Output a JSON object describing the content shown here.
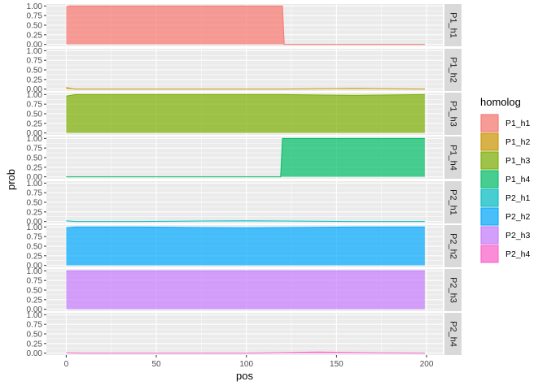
{
  "chart_data": {
    "type": "area",
    "xlabel": "pos",
    "ylabel": "prob",
    "xlim": [
      -11,
      209
    ],
    "ylim": [
      -0.05,
      1.05
    ],
    "x_ticks": [
      0,
      50,
      100,
      150,
      200
    ],
    "y_ticks": [
      0.0,
      0.25,
      0.5,
      0.75,
      1.0
    ],
    "y_tick_labels": [
      "0.00",
      "0.25",
      "0.50",
      "0.75",
      "1.00"
    ],
    "legend": {
      "title": "homolog",
      "position": "right"
    },
    "grid": true,
    "facets": [
      {
        "label": "P1_h1",
        "color": "#F8766D",
        "x": [
          0,
          2,
          120,
          121,
          199
        ],
        "y": [
          0.98,
          1.0,
          1.0,
          0.0,
          0.0
        ]
      },
      {
        "label": "P1_h2",
        "color": "#CD9600",
        "x": [
          0,
          5,
          40,
          120,
          160,
          199
        ],
        "y": [
          0.04,
          0.0,
          0.0,
          0.0,
          0.02,
          0.0
        ]
      },
      {
        "label": "P1_h3",
        "color": "#7CAE00",
        "x": [
          0,
          5,
          60,
          120,
          160,
          199
        ],
        "y": [
          0.96,
          1.0,
          1.0,
          1.0,
          0.98,
          1.0
        ]
      },
      {
        "label": "P1_h4",
        "color": "#00BE67",
        "x": [
          0,
          119,
          120,
          199
        ],
        "y": [
          0.0,
          0.0,
          1.0,
          1.0
        ]
      },
      {
        "label": "P2_h1",
        "color": "#00BFC4",
        "x": [
          0,
          5,
          40,
          100,
          160,
          199
        ],
        "y": [
          0.02,
          0.0,
          0.0,
          0.02,
          0.0,
          0.0
        ]
      },
      {
        "label": "P2_h2",
        "color": "#00A9FF",
        "x": [
          0,
          5,
          40,
          100,
          160,
          199
        ],
        "y": [
          0.98,
          1.0,
          1.0,
          0.98,
          1.0,
          1.0
        ]
      },
      {
        "label": "P2_h3",
        "color": "#C77CFF",
        "x": [
          0,
          199
        ],
        "y": [
          1.0,
          1.0
        ]
      },
      {
        "label": "P2_h4",
        "color": "#FF61CC",
        "x": [
          0,
          10,
          40,
          100,
          140,
          170,
          199
        ],
        "y": [
          0.01,
          0.0,
          0.0,
          0.0,
          0.03,
          0.01,
          0.0
        ]
      }
    ]
  }
}
